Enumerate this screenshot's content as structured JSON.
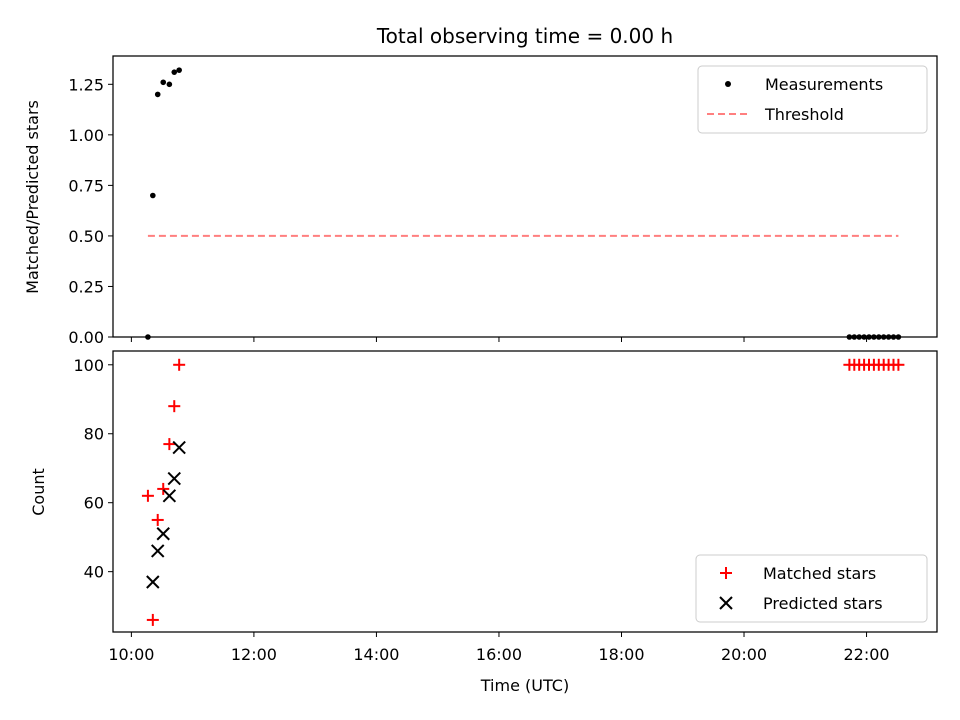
{
  "colors": {
    "measurement": "#000000",
    "threshold": "#ff7f7f",
    "matched": "#ff0000",
    "predicted": "#000000",
    "axes": "#000000",
    "background": "#ffffff"
  },
  "chart_data": [
    {
      "type": "scatter",
      "title": "Total observing time = 0.00 h",
      "xlabel": "",
      "ylabel": "Matched/Predicted stars",
      "x_axis": "time (hours UTC)",
      "xlim": [
        9.7,
        23.15
      ],
      "ylim": [
        0,
        1.39
      ],
      "yticks": [
        0,
        0.25,
        0.5,
        0.75,
        1.0,
        1.25
      ],
      "ytick_labels": [
        "0.00",
        "0.25",
        "0.50",
        "0.75",
        "1.00",
        "1.25"
      ],
      "legend": {
        "position": "upper right",
        "entries": [
          "Measurements",
          "Threshold"
        ]
      },
      "series": [
        {
          "name": "Measurements",
          "marker": "dot",
          "points": [
            {
              "x": 10.27,
              "y": 0.0
            },
            {
              "x": 10.35,
              "y": 0.7
            },
            {
              "x": 10.43,
              "y": 1.2
            },
            {
              "x": 10.52,
              "y": 1.26
            },
            {
              "x": 10.62,
              "y": 1.25
            },
            {
              "x": 10.7,
              "y": 1.31
            },
            {
              "x": 10.78,
              "y": 1.32
            },
            {
              "x": 21.72,
              "y": 0.0
            },
            {
              "x": 21.8,
              "y": 0.0
            },
            {
              "x": 21.88,
              "y": 0.0
            },
            {
              "x": 21.96,
              "y": 0.0
            },
            {
              "x": 22.04,
              "y": 0.0
            },
            {
              "x": 22.12,
              "y": 0.0
            },
            {
              "x": 22.2,
              "y": 0.0
            },
            {
              "x": 22.28,
              "y": 0.0
            },
            {
              "x": 22.36,
              "y": 0.0
            },
            {
              "x": 22.44,
              "y": 0.0
            },
            {
              "x": 22.52,
              "y": 0.0
            }
          ]
        },
        {
          "name": "Threshold",
          "style": "dashed",
          "points": [
            {
              "x": 10.27,
              "y": 0.5
            },
            {
              "x": 22.52,
              "y": 0.5
            }
          ]
        }
      ]
    },
    {
      "type": "scatter",
      "title": "",
      "xlabel": "Time (UTC)",
      "ylabel": "Count",
      "x_axis": "time (hours UTC)",
      "xlim": [
        9.7,
        23.15
      ],
      "ylim": [
        22.5,
        104
      ],
      "xticks": [
        10,
        12,
        14,
        16,
        18,
        20,
        22
      ],
      "xtick_labels": [
        "10:00",
        "12:00",
        "14:00",
        "16:00",
        "18:00",
        "20:00",
        "22:00"
      ],
      "yticks": [
        40,
        60,
        80,
        100
      ],
      "ytick_labels": [
        "40",
        "60",
        "80",
        "100"
      ],
      "legend": {
        "position": "lower right",
        "entries": [
          "Matched stars",
          "Predicted stars"
        ]
      },
      "series": [
        {
          "name": "Matched stars",
          "marker": "plus",
          "points": [
            {
              "x": 10.27,
              "y": 62
            },
            {
              "x": 10.35,
              "y": 26
            },
            {
              "x": 10.43,
              "y": 55
            },
            {
              "x": 10.52,
              "y": 64
            },
            {
              "x": 10.62,
              "y": 77
            },
            {
              "x": 10.7,
              "y": 88
            },
            {
              "x": 10.78,
              "y": 100
            },
            {
              "x": 21.72,
              "y": 100
            },
            {
              "x": 21.8,
              "y": 100
            },
            {
              "x": 21.88,
              "y": 100
            },
            {
              "x": 21.96,
              "y": 100
            },
            {
              "x": 22.04,
              "y": 100
            },
            {
              "x": 22.12,
              "y": 100
            },
            {
              "x": 22.2,
              "y": 100
            },
            {
              "x": 22.28,
              "y": 100
            },
            {
              "x": 22.36,
              "y": 100
            },
            {
              "x": 22.44,
              "y": 100
            },
            {
              "x": 22.52,
              "y": 100
            }
          ]
        },
        {
          "name": "Predicted stars",
          "marker": "x",
          "points": [
            {
              "x": 10.35,
              "y": 37
            },
            {
              "x": 10.43,
              "y": 46
            },
            {
              "x": 10.52,
              "y": 51
            },
            {
              "x": 10.62,
              "y": 62
            },
            {
              "x": 10.7,
              "y": 67
            },
            {
              "x": 10.78,
              "y": 76
            }
          ]
        }
      ]
    }
  ]
}
